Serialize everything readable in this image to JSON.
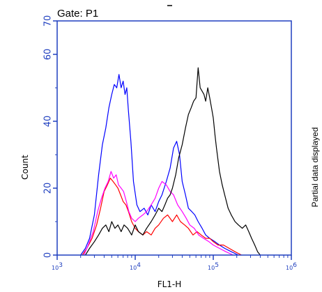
{
  "gate_label": "Gate: P1",
  "side_note": "Partial data displayed",
  "colors": {
    "axis": "#1f3fbf",
    "text": "#000000",
    "series": [
      "#0000ff",
      "#ff0000",
      "#ff00ff",
      "#000000"
    ]
  },
  "chart_data": {
    "type": "line",
    "title": "",
    "xlabel": "FL1-H",
    "ylabel": "Count",
    "xscale": "log",
    "xlim": [
      1000,
      1000000
    ],
    "ylim": [
      0,
      70
    ],
    "yticks": [
      0,
      20,
      40,
      60,
      70
    ],
    "xticks": [
      {
        "value": 1000,
        "base": "10",
        "exp": "3"
      },
      {
        "value": 10000,
        "base": "10",
        "exp": "4"
      },
      {
        "value": 100000,
        "base": "10",
        "exp": "5"
      },
      {
        "value": 1000000,
        "base": "10",
        "exp": "6"
      }
    ],
    "grid": false,
    "legend": "none",
    "series": [
      {
        "color": "#0000ff",
        "points": [
          [
            2000,
            0
          ],
          [
            2300,
            2
          ],
          [
            2600,
            5
          ],
          [
            3000,
            12
          ],
          [
            3400,
            24
          ],
          [
            3800,
            33
          ],
          [
            4200,
            38
          ],
          [
            4600,
            44
          ],
          [
            5000,
            48
          ],
          [
            5400,
            51
          ],
          [
            5800,
            50
          ],
          [
            6200,
            54
          ],
          [
            6600,
            50
          ],
          [
            7000,
            52
          ],
          [
            7400,
            48
          ],
          [
            7800,
            50
          ],
          [
            8200,
            43
          ],
          [
            8800,
            34
          ],
          [
            9500,
            22
          ],
          [
            10500,
            15
          ],
          [
            11500,
            13
          ],
          [
            13000,
            14
          ],
          [
            14500,
            12
          ],
          [
            16000,
            15
          ],
          [
            18000,
            13
          ],
          [
            20000,
            16
          ],
          [
            22000,
            18
          ],
          [
            25000,
            22
          ],
          [
            28000,
            26
          ],
          [
            31000,
            32
          ],
          [
            34000,
            34
          ],
          [
            37000,
            30
          ],
          [
            40000,
            22
          ],
          [
            44000,
            18
          ],
          [
            48000,
            14
          ],
          [
            53000,
            13
          ],
          [
            58000,
            12
          ],
          [
            64000,
            10
          ],
          [
            72000,
            8
          ],
          [
            80000,
            6
          ],
          [
            90000,
            5
          ],
          [
            105000,
            4
          ],
          [
            120000,
            3
          ],
          [
            140000,
            2
          ],
          [
            170000,
            1
          ],
          [
            210000,
            0
          ]
        ]
      },
      {
        "color": "#ff0000",
        "points": [
          [
            2100,
            0
          ],
          [
            2400,
            2
          ],
          [
            2800,
            5
          ],
          [
            3200,
            9
          ],
          [
            3600,
            14
          ],
          [
            4000,
            19
          ],
          [
            4400,
            21
          ],
          [
            4800,
            23
          ],
          [
            5200,
            22
          ],
          [
            5600,
            21
          ],
          [
            6000,
            20
          ],
          [
            6500,
            18
          ],
          [
            7000,
            16
          ],
          [
            7600,
            15
          ],
          [
            8200,
            13
          ],
          [
            9000,
            10
          ],
          [
            10000,
            8
          ],
          [
            11000,
            7
          ],
          [
            12500,
            6
          ],
          [
            14000,
            7
          ],
          [
            16000,
            6
          ],
          [
            18000,
            8
          ],
          [
            20000,
            9
          ],
          [
            23000,
            11
          ],
          [
            26000,
            12
          ],
          [
            30000,
            10
          ],
          [
            34000,
            12
          ],
          [
            38000,
            10
          ],
          [
            43000,
            9
          ],
          [
            48000,
            8
          ],
          [
            55000,
            6
          ],
          [
            62000,
            7
          ],
          [
            70000,
            6
          ],
          [
            80000,
            5
          ],
          [
            90000,
            5
          ],
          [
            100000,
            4
          ],
          [
            115000,
            3
          ],
          [
            135000,
            3
          ],
          [
            160000,
            2
          ],
          [
            190000,
            1
          ],
          [
            230000,
            0
          ]
        ]
      },
      {
        "color": "#ff00ff",
        "points": [
          [
            2200,
            0
          ],
          [
            2500,
            3
          ],
          [
            2900,
            7
          ],
          [
            3300,
            13
          ],
          [
            3700,
            17
          ],
          [
            4100,
            20
          ],
          [
            4500,
            22
          ],
          [
            4900,
            25
          ],
          [
            5300,
            23
          ],
          [
            5700,
            24
          ],
          [
            6100,
            21
          ],
          [
            6600,
            20
          ],
          [
            7100,
            19
          ],
          [
            7700,
            16
          ],
          [
            8300,
            13
          ],
          [
            9000,
            11
          ],
          [
            10000,
            10
          ],
          [
            11000,
            11
          ],
          [
            12500,
            12
          ],
          [
            14000,
            13
          ],
          [
            16000,
            15
          ],
          [
            18000,
            17
          ],
          [
            20000,
            20
          ],
          [
            22000,
            22
          ],
          [
            25000,
            21
          ],
          [
            28000,
            19
          ],
          [
            31000,
            18
          ],
          [
            35000,
            15
          ],
          [
            40000,
            13
          ],
          [
            45000,
            11
          ],
          [
            50000,
            9
          ],
          [
            57000,
            8
          ],
          [
            65000,
            6
          ],
          [
            75000,
            5
          ],
          [
            88000,
            4
          ],
          [
            100000,
            3
          ],
          [
            120000,
            2
          ],
          [
            145000,
            1
          ],
          [
            180000,
            0
          ]
        ]
      },
      {
        "color": "#000000",
        "points": [
          [
            2300,
            0
          ],
          [
            2600,
            2
          ],
          [
            3000,
            4
          ],
          [
            3400,
            6
          ],
          [
            3800,
            8
          ],
          [
            4200,
            9
          ],
          [
            4600,
            7
          ],
          [
            5000,
            10
          ],
          [
            5500,
            8
          ],
          [
            6000,
            9
          ],
          [
            6600,
            7
          ],
          [
            7200,
            9
          ],
          [
            8000,
            8
          ],
          [
            9000,
            6
          ],
          [
            10000,
            9
          ],
          [
            11000,
            7
          ],
          [
            12500,
            6
          ],
          [
            14000,
            8
          ],
          [
            16000,
            10
          ],
          [
            18000,
            12
          ],
          [
            20000,
            14
          ],
          [
            22000,
            13
          ],
          [
            24000,
            15
          ],
          [
            26000,
            17
          ],
          [
            28000,
            18
          ],
          [
            30000,
            20
          ],
          [
            33000,
            24
          ],
          [
            36000,
            29
          ],
          [
            40000,
            33
          ],
          [
            44000,
            38
          ],
          [
            48000,
            42
          ],
          [
            52000,
            44
          ],
          [
            56000,
            46
          ],
          [
            60000,
            47
          ],
          [
            64000,
            56
          ],
          [
            68000,
            50
          ],
          [
            72000,
            49
          ],
          [
            76000,
            48
          ],
          [
            80000,
            46
          ],
          [
            85000,
            50
          ],
          [
            90000,
            47
          ],
          [
            95000,
            44
          ],
          [
            100000,
            41
          ],
          [
            105000,
            36
          ],
          [
            110000,
            32
          ],
          [
            120000,
            25
          ],
          [
            130000,
            21
          ],
          [
            140000,
            18
          ],
          [
            155000,
            14
          ],
          [
            170000,
            12
          ],
          [
            190000,
            10
          ],
          [
            210000,
            9
          ],
          [
            235000,
            8
          ],
          [
            260000,
            9
          ],
          [
            285000,
            7
          ],
          [
            310000,
            5
          ],
          [
            340000,
            3
          ],
          [
            370000,
            1
          ],
          [
            400000,
            0
          ]
        ]
      }
    ]
  }
}
